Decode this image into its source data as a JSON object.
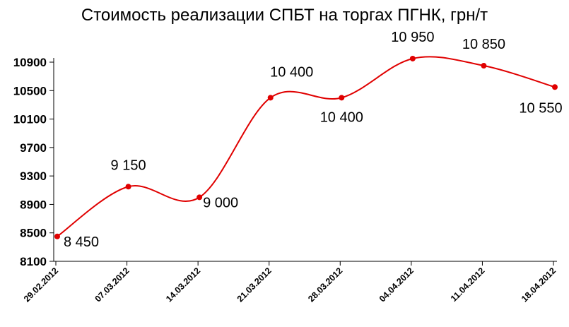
{
  "title": "Стоимость реализации СПБТ на торгах ПГНК, грн/т",
  "chart_data": {
    "type": "line",
    "title": "Стоимость реализации СПБТ на торгах ПГНК, грн/т",
    "categories": [
      "29.02.2012",
      "07.03.2012",
      "14.03.2012",
      "21.03.2012",
      "28.03.2012",
      "04.04.2012",
      "11.04.2012",
      "18.04.2012"
    ],
    "series": [
      {
        "values": [
          8450,
          9150,
          9000,
          10400,
          10400,
          10950,
          10850,
          10550
        ],
        "labels": [
          "8 450",
          "9 150",
          "9 000",
          "10 400",
          "10 400",
          "10 950",
          "10 850",
          "10 550"
        ],
        "color": "#e00000"
      }
    ],
    "ylim": [
      8100,
      10900
    ],
    "yticks": [
      "8100",
      "8500",
      "8900",
      "9300",
      "9700",
      "10100",
      "10500",
      "10900"
    ],
    "xlabel": "",
    "ylabel": "",
    "grid": false,
    "smooth": true
  }
}
